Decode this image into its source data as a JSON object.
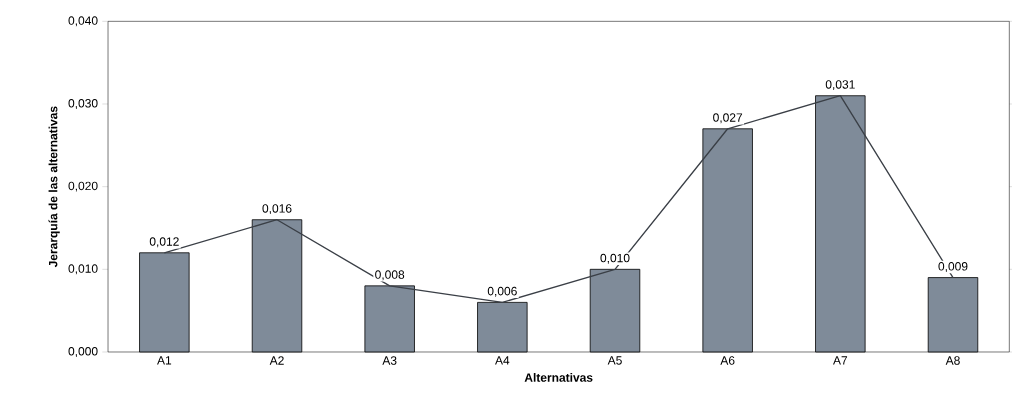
{
  "chart_data": {
    "type": "bar",
    "xlabel": "Alternativas",
    "ylabel": "Jerarquía de las alternativas",
    "categories": [
      "A1",
      "A2",
      "A3",
      "A4",
      "A5",
      "A6",
      "A7",
      "A8"
    ],
    "series": [
      {
        "color": "#7f8b99",
        "values": [
          0.012,
          0.016,
          0.008,
          0.006,
          0.01,
          0.027,
          0.031,
          0.009
        ],
        "value_labels": [
          "0,012",
          "0,016",
          "0,008",
          "0,006",
          "0,010",
          "0,027",
          "0,031",
          "0,009"
        ]
      },
      {
        "type": "line",
        "color": "#3a3f46",
        "values": [
          0.012,
          0.016,
          0.008,
          0.006,
          0.01,
          0.027,
          0.031,
          0.009
        ]
      }
    ],
    "ylim": [
      0,
      0.04
    ],
    "yticks": [
      {
        "value": 0,
        "label": "0,000"
      },
      {
        "value": 0.01,
        "label": "0,010"
      },
      {
        "value": 0.02,
        "label": "0,020"
      },
      {
        "value": 0.03,
        "label": "0,030"
      },
      {
        "value": 0.04,
        "label": "0,040"
      }
    ]
  }
}
